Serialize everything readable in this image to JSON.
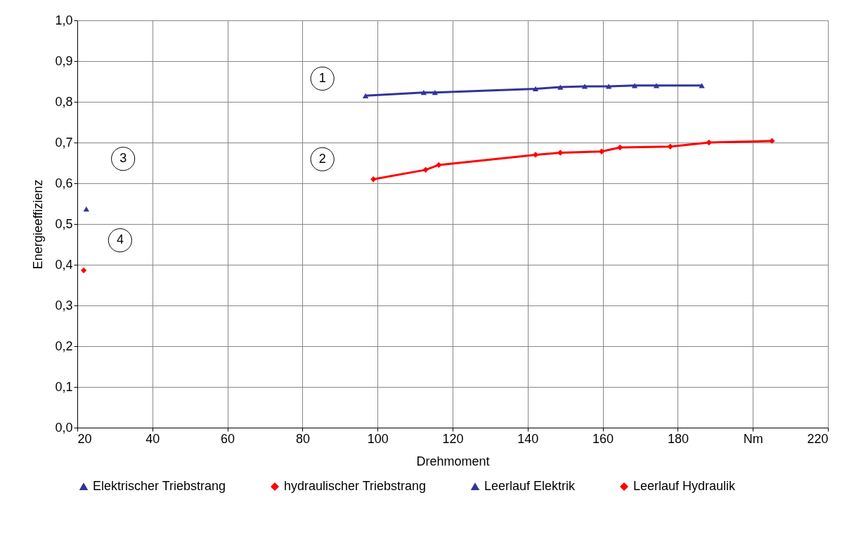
{
  "chart_data": {
    "type": "line",
    "xlabel": "Drehmoment",
    "ylabel": "Energieeffizienz",
    "xlim": [
      20,
      220
    ],
    "xticks": [
      20,
      40,
      60,
      80,
      100,
      120,
      140,
      160,
      180,
      {
        "value": 200,
        "label": "Nm"
      },
      220
    ],
    "ylim": [
      0,
      1
    ],
    "yticks": [
      {
        "value": 0,
        "label": "0,0"
      },
      {
        "value": 0.1,
        "label": "0,1"
      },
      {
        "value": 0.2,
        "label": "0,2"
      },
      {
        "value": 0.3,
        "label": "0,3"
      },
      {
        "value": 0.4,
        "label": "0,4"
      },
      {
        "value": 0.5,
        "label": "0,5"
      },
      {
        "value": 0.6,
        "label": "0,6"
      },
      {
        "value": 0.7,
        "label": "0,7"
      },
      {
        "value": 0.8,
        "label": "0,8"
      },
      {
        "value": 0.9,
        "label": "0,9"
      },
      {
        "value": 1,
        "label": "1,0"
      }
    ],
    "grid": true,
    "legend": "bottom",
    "line_style": "solid",
    "series": [
      {
        "name": "Elektrischer Triebstrang",
        "marker": "triangle",
        "color": "#333399",
        "x": [
          96.8,
          112.3,
          115.3,
          142.1,
          148.7,
          155.2,
          161.6,
          168.5,
          174.3,
          186.4
        ],
        "values": [
          0.815,
          0.823,
          0.823,
          0.832,
          0.836,
          0.838,
          0.838,
          0.84,
          0.84,
          0.84
        ]
      },
      {
        "name": "hydraulischer Triebstrang",
        "marker": "diamond",
        "color": "#ff0000",
        "x": [
          98.9,
          112.8,
          116.3,
          142.1,
          148.7,
          159.7,
          164.6,
          178.0,
          188.3,
          205.1
        ],
        "values": [
          0.61,
          0.633,
          0.645,
          0.67,
          0.675,
          0.678,
          0.688,
          0.69,
          0.7,
          0.704
        ]
      },
      {
        "name": "Leerlauf Elektrik",
        "type": "scatter",
        "marker": "triangle",
        "color": "#333399",
        "x": [
          22.4
        ],
        "values": [
          0.537
        ]
      },
      {
        "name": "Leerlauf Hydraulik",
        "type": "scatter",
        "marker": "diamond",
        "color": "#ff0000",
        "x": [
          21.7
        ],
        "values": [
          0.386
        ]
      }
    ],
    "annotations": [
      {
        "text": "1",
        "x": 85.3,
        "y": 0.857
      },
      {
        "text": "2",
        "x": 85.3,
        "y": 0.659
      },
      {
        "text": "3",
        "x": 32.2,
        "y": 0.66
      },
      {
        "text": "4",
        "x": 31.4,
        "y": 0.46
      }
    ]
  }
}
